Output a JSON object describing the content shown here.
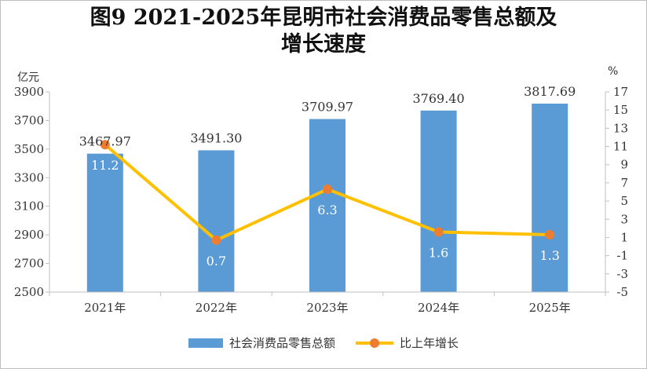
{
  "chart_data": {
    "type": "bar+line",
    "title": "图9 2021-2025年昆明市社会消费品零售总额及\n增长速度",
    "categories": [
      "2021年",
      "2022年",
      "2023年",
      "2024年",
      "2025年"
    ],
    "left_axis": {
      "unit": "亿元",
      "ylim": [
        2500,
        3900
      ],
      "ticks": [
        "2500",
        "2700",
        "2900",
        "3100",
        "3300",
        "3500",
        "3700",
        "3900"
      ]
    },
    "right_axis": {
      "unit": "%",
      "ylim": [
        -5,
        17
      ],
      "ticks": [
        "-5",
        "-3",
        "-1",
        "1",
        "3",
        "5",
        "7",
        "9",
        "11",
        "13",
        "15",
        "17"
      ]
    },
    "series": [
      {
        "name": "社会消费品零售总额",
        "type": "bar",
        "axis": "left",
        "color": "#5b9bd5",
        "values": [
          3467.97,
          3491.3,
          3709.97,
          3769.4,
          3817.69
        ],
        "labels": [
          "3467.97",
          "3491.30",
          "3709.97",
          "3769.40",
          "3817.69"
        ]
      },
      {
        "name": "比上年增长",
        "type": "line",
        "axis": "right",
        "color": "#ffc000",
        "marker_color": "#ed7d31",
        "values": [
          11.2,
          0.7,
          6.3,
          1.6,
          1.3
        ],
        "labels": [
          "11.2",
          "0.7",
          "6.3",
          "1.6",
          "1.3"
        ]
      }
    ],
    "legend": "bottom",
    "grid": false
  }
}
